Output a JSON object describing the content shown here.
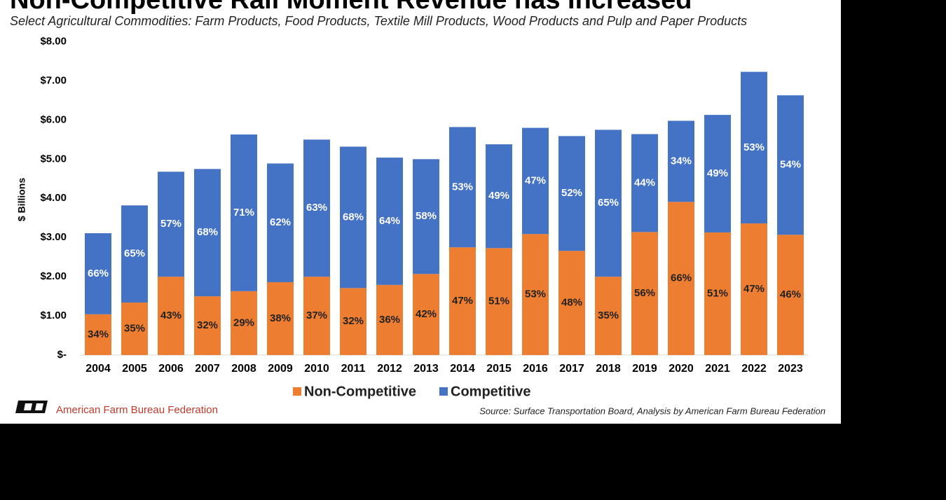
{
  "chart_data": {
    "type": "stacked-bar",
    "title": "Non-Competitive Rail Moment Revenue has Increased",
    "subtitle": "Select Agricultural Commodities: Farm Products, Food Products, Textile Mill Products, Wood Products and Pulp and Paper Products",
    "ylabel": "$ Billions",
    "categories": [
      "2004",
      "2005",
      "2006",
      "2007",
      "2008",
      "2009",
      "2010",
      "2011",
      "2012",
      "2013",
      "2014",
      "2015",
      "2016",
      "2017",
      "2018",
      "2019",
      "2020",
      "2021",
      "2022",
      "2023"
    ],
    "series": [
      {
        "name": "Non-Competitive",
        "color": "#ed7d31",
        "values": [
          1.04,
          1.34,
          2.0,
          1.5,
          1.63,
          1.86,
          2.0,
          1.71,
          1.79,
          2.07,
          2.75,
          2.73,
          3.09,
          2.66,
          2.0,
          3.14,
          3.91,
          3.13,
          3.36,
          3.07
        ],
        "share_labels": [
          "34%",
          "35%",
          "43%",
          "32%",
          "29%",
          "38%",
          "37%",
          "32%",
          "36%",
          "42%",
          "47%",
          "51%",
          "53%",
          "48%",
          "35%",
          "56%",
          "66%",
          "51%",
          "47%",
          "46%"
        ]
      },
      {
        "name": "Competitive",
        "color": "#4472c4",
        "values": [
          2.07,
          2.48,
          2.68,
          3.25,
          4.0,
          3.03,
          3.5,
          3.61,
          3.25,
          2.93,
          3.07,
          2.65,
          2.71,
          2.93,
          3.75,
          2.5,
          2.07,
          3.0,
          3.87,
          3.56
        ],
        "share_labels": [
          "66%",
          "65%",
          "57%",
          "68%",
          "71%",
          "62%",
          "63%",
          "68%",
          "64%",
          "58%",
          "53%",
          "49%",
          "47%",
          "52%",
          "65%",
          "44%",
          "34%",
          "49%",
          "53%",
          "54%"
        ]
      }
    ],
    "ylim": [
      0,
      8
    ],
    "yticks": [
      {
        "value": 0,
        "label": "$-"
      },
      {
        "value": 1,
        "label": "$1.00"
      },
      {
        "value": 2,
        "label": "$2.00"
      },
      {
        "value": 3,
        "label": "$3.00"
      },
      {
        "value": 4,
        "label": "$4.00"
      },
      {
        "value": 5,
        "label": "$5.00"
      },
      {
        "value": 6,
        "label": "$6.00"
      },
      {
        "value": 7,
        "label": "$7.00"
      },
      {
        "value": 8,
        "label": "$8.00"
      }
    ],
    "grid": false,
    "legend": "bottom",
    "organization": "American Farm Bureau Federation",
    "source": "Source: Surface Transportation Board, Analysis by American Farm Bureau Federation"
  }
}
